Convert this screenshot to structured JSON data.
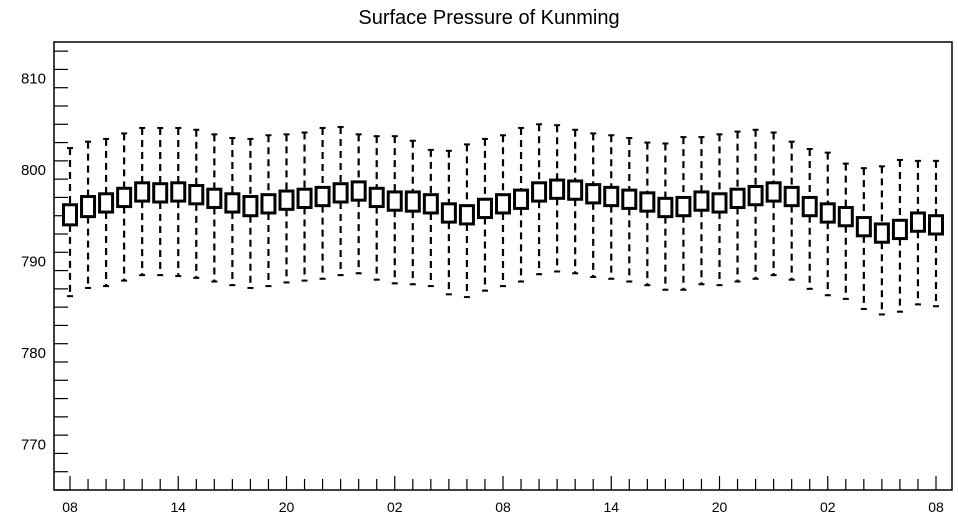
{
  "chart_data": {
    "type": "box",
    "title": "Surface Pressure of Kunming",
    "xlabel": "",
    "ylabel": "",
    "ylim": [
      765,
      814
    ],
    "yticks": [
      770,
      780,
      790,
      800,
      810
    ],
    "xtick_labels": [
      "08",
      "14",
      "20",
      "02",
      "08",
      "14",
      "20",
      "02",
      "08"
    ],
    "grid": false,
    "n_points": 49,
    "box_upper": [
      796.2,
      797.1,
      797.4,
      798.0,
      798.6,
      798.5,
      798.6,
      798.3,
      797.9,
      797.4,
      797.1,
      797.3,
      797.7,
      797.9,
      798.1,
      798.5,
      798.7,
      798.0,
      797.6,
      797.6,
      797.3,
      796.3,
      796.1,
      796.8,
      797.3,
      797.8,
      798.6,
      798.9,
      798.8,
      798.4,
      798.1,
      797.8,
      797.5,
      796.9,
      797.0,
      797.6,
      797.4,
      797.9,
      798.2,
      798.6,
      798.1,
      797.0,
      796.3,
      795.9,
      794.8,
      794.1,
      794.5,
      795.3,
      795.0
    ],
    "box_lower": [
      794.0,
      794.9,
      795.4,
      796.0,
      796.6,
      796.5,
      796.6,
      796.3,
      795.9,
      795.4,
      795.0,
      795.3,
      795.7,
      795.9,
      796.1,
      796.5,
      796.7,
      796.0,
      795.6,
      795.5,
      795.3,
      794.3,
      794.1,
      794.8,
      795.3,
      795.8,
      796.6,
      796.9,
      796.8,
      796.4,
      796.1,
      795.8,
      795.5,
      794.9,
      795.0,
      795.6,
      795.4,
      795.9,
      796.2,
      796.6,
      796.1,
      795.0,
      794.3,
      793.9,
      792.8,
      792.1,
      792.5,
      793.3,
      793.0
    ],
    "whisker_high": [
      802.4,
      803.1,
      803.4,
      804.0,
      804.6,
      804.6,
      804.6,
      804.4,
      803.9,
      803.5,
      803.4,
      803.8,
      803.9,
      804.1,
      804.6,
      804.7,
      803.9,
      803.7,
      803.7,
      803.2,
      802.2,
      802.1,
      802.8,
      803.4,
      803.8,
      804.6,
      805.0,
      804.9,
      804.4,
      804.0,
      803.8,
      803.5,
      803.0,
      802.9,
      803.6,
      803.6,
      803.9,
      804.2,
      804.4,
      804.1,
      803.1,
      802.3,
      801.9,
      800.7,
      800.2,
      800.4,
      801.1,
      801.0,
      801.0
    ],
    "whisker_low": [
      786.2,
      787.1,
      787.3,
      787.9,
      788.5,
      788.5,
      788.4,
      788.2,
      787.8,
      787.4,
      787.1,
      787.3,
      787.7,
      787.9,
      788.1,
      788.5,
      788.7,
      788.0,
      787.6,
      787.5,
      787.3,
      786.4,
      786.1,
      786.8,
      787.3,
      787.8,
      788.6,
      788.9,
      788.7,
      788.3,
      788.1,
      787.8,
      787.4,
      786.9,
      786.9,
      787.5,
      787.4,
      787.8,
      788.1,
      788.5,
      788.0,
      787.0,
      786.3,
      785.9,
      784.8,
      784.2,
      784.5,
      785.3,
      785.1
    ]
  }
}
